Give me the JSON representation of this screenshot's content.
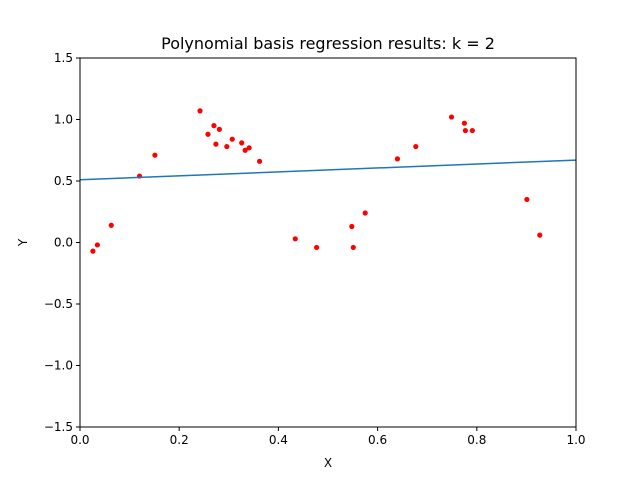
{
  "chart_data": {
    "type": "scatter",
    "title": "Polynomial basis regression results: k = 2",
    "xlabel": "X",
    "ylabel": "Y",
    "xlim": [
      0.0,
      1.0
    ],
    "ylim": [
      -1.5,
      1.5
    ],
    "xticks": [
      "0.0",
      "0.2",
      "0.4",
      "0.6",
      "0.8",
      "1.0"
    ],
    "yticks": [
      "−1.5",
      "−1.0",
      "−0.5",
      "0.0",
      "0.5",
      "1.0",
      "1.5"
    ],
    "grid": false,
    "series": [
      {
        "type": "scatter",
        "color": "#ff0000",
        "x": [
          0.026,
          0.035,
          0.063,
          0.12,
          0.151,
          0.242,
          0.258,
          0.27,
          0.274,
          0.281,
          0.296,
          0.307,
          0.326,
          0.333,
          0.341,
          0.362,
          0.434,
          0.477,
          0.548,
          0.551,
          0.575,
          0.64,
          0.677,
          0.749,
          0.775,
          0.777,
          0.791,
          0.901,
          0.927
        ],
        "y": [
          -0.07,
          -0.02,
          0.14,
          0.54,
          0.71,
          1.07,
          0.88,
          0.95,
          0.8,
          0.92,
          0.78,
          0.84,
          0.81,
          0.75,
          0.77,
          0.66,
          0.03,
          -0.04,
          0.13,
          -0.04,
          0.24,
          0.68,
          0.78,
          1.02,
          0.97,
          0.91,
          0.91,
          0.35,
          0.06
        ]
      },
      {
        "type": "line",
        "color": "#1f77b4",
        "x": [
          0.0,
          1.0
        ],
        "y": [
          0.51,
          0.67
        ]
      }
    ]
  }
}
